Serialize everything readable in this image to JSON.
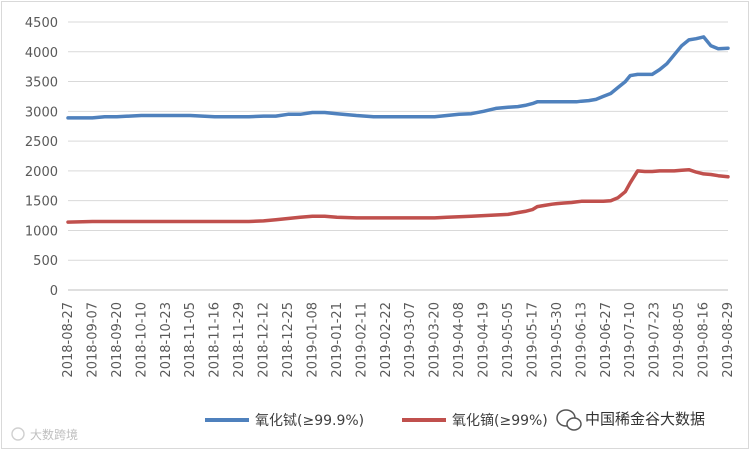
{
  "chart_data": {
    "type": "line",
    "title": "",
    "xlabel": "",
    "ylabel": "",
    "ylim": [
      0,
      4500
    ],
    "y_ticks": [
      "4500",
      "4000",
      "3500",
      "3000",
      "2500",
      "2000",
      "1500",
      "1000",
      "500",
      "0"
    ],
    "y_tick_values": [
      4500,
      4000,
      3500,
      3000,
      2500,
      2000,
      1500,
      1000,
      500,
      0
    ],
    "x_tick_labels": [
      "2018-08-27",
      "2018-09-07",
      "2018-09-20",
      "2018-10-10",
      "2018-10-23",
      "2018-11-05",
      "2018-11-16",
      "2018-11-29",
      "2018-12-12",
      "2018-12-25",
      "2019-01-08",
      "2019-01-21",
      "2019-02-11",
      "2019-02-22",
      "2019-03-07",
      "2019-03-20",
      "2019-04-08",
      "2019-04-19",
      "2019-05-05",
      "2019-05-17",
      "2019-05-30",
      "2019-06-13",
      "2019-06-27",
      "2019-07-10",
      "2019-07-23",
      "2019-08-05",
      "2019-08-16",
      "2019-08-29"
    ],
    "grid": "horizontal",
    "legend_position": "bottom",
    "series": [
      {
        "name": "氧化铽(≥99.9%)",
        "color": "#4f81bd",
        "x": [
          0,
          1,
          1.5,
          2,
          3,
          4,
          5,
          6,
          6.6,
          7,
          7.4,
          8,
          8.5,
          9,
          9.5,
          10,
          10.5,
          11,
          11.8,
          12.5,
          13,
          13.5,
          14,
          14.4,
          15,
          15.5,
          16,
          16.5,
          17,
          17.5,
          18,
          18.4,
          18.7,
          19,
          19.2,
          19.5,
          19.8,
          20,
          20.3,
          20.6,
          20.8,
          21,
          21.3,
          21.6,
          21.9,
          22.2,
          22.5,
          22.8,
          23,
          23.3,
          23.6,
          23.9,
          24.2,
          24.5,
          24.8,
          25.1,
          25.4,
          25.7,
          26,
          26.3,
          26.6,
          27
        ],
        "values": [
          2890,
          2890,
          2910,
          2910,
          2930,
          2930,
          2930,
          2910,
          2910,
          2910,
          2910,
          2920,
          2920,
          2950,
          2950,
          2980,
          2980,
          2960,
          2930,
          2910,
          2910,
          2910,
          2910,
          2910,
          2910,
          2930,
          2950,
          2960,
          3000,
          3050,
          3070,
          3080,
          3100,
          3130,
          3160,
          3160,
          3160,
          3160,
          3160,
          3160,
          3160,
          3170,
          3180,
          3200,
          3250,
          3300,
          3400,
          3500,
          3600,
          3620,
          3620,
          3620,
          3700,
          3800,
          3950,
          4100,
          4200,
          4220,
          4250,
          4100,
          4050,
          4060
        ]
      },
      {
        "name": "氧化镝(≥99%)",
        "color": "#c0504d",
        "values": [
          1140,
          1150,
          1150,
          1150,
          1150,
          1150,
          1150,
          1150,
          1150,
          1150,
          1150,
          1160,
          1180,
          1200,
          1220,
          1240,
          1240,
          1220,
          1210,
          1210,
          1210,
          1210,
          1210,
          1210,
          1210,
          1220,
          1230,
          1240,
          1250,
          1260,
          1270,
          1300,
          1320,
          1350,
          1400,
          1420,
          1440,
          1450,
          1460,
          1470,
          1480,
          1490,
          1490,
          1490,
          1490,
          1500,
          1550,
          1650,
          1800,
          2000,
          1990,
          1990,
          2000,
          2000,
          2000,
          2010,
          2020,
          1980,
          1950,
          1940,
          1920,
          1900
        ]
      }
    ]
  },
  "legend": [
    {
      "label": "氧化铽(≥99.9%)",
      "color": "#4f81bd"
    },
    {
      "label": "氧化镝(≥99%)",
      "color": "#c0504d"
    }
  ],
  "watermark": {
    "right_text": "中国稀金谷大数据",
    "left_text": "大数跨境"
  }
}
